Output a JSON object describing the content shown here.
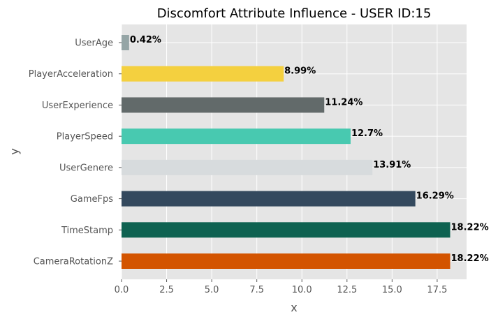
{
  "chart_data": {
    "type": "bar",
    "orientation": "horizontal",
    "title": "Discomfort Attribute Influence - USER ID:15",
    "xlabel": "x",
    "ylabel": "y",
    "xlim": [
      0,
      19.13
    ],
    "xticks": [
      0.0,
      2.5,
      5.0,
      7.5,
      10.0,
      12.5,
      15.0,
      17.5
    ],
    "xtick_labels": [
      "0.0",
      "2.5",
      "5.0",
      "7.5",
      "10.0",
      "12.5",
      "15.0",
      "17.5"
    ],
    "grid": true,
    "style": "ggplot",
    "categories": [
      "UserAge",
      "PlayerAcceleration",
      "UserExperience",
      "PlayerSpeed",
      "UserGenere",
      "GameFps",
      "TimeStamp",
      "CameraRotationZ"
    ],
    "values": [
      0.42,
      8.99,
      11.24,
      12.7,
      13.91,
      16.29,
      18.22,
      18.22
    ],
    "value_labels": [
      "0.42%",
      "8.99%",
      "11.24%",
      "12.7%",
      "13.91%",
      "16.29%",
      "18.22%",
      "18.22%"
    ],
    "colors": [
      "#95a5a6",
      "#f4d03f",
      "#626a6a",
      "#48c9b0",
      "#d7dbdd",
      "#34495e",
      "#0e6251",
      "#d35400"
    ]
  }
}
